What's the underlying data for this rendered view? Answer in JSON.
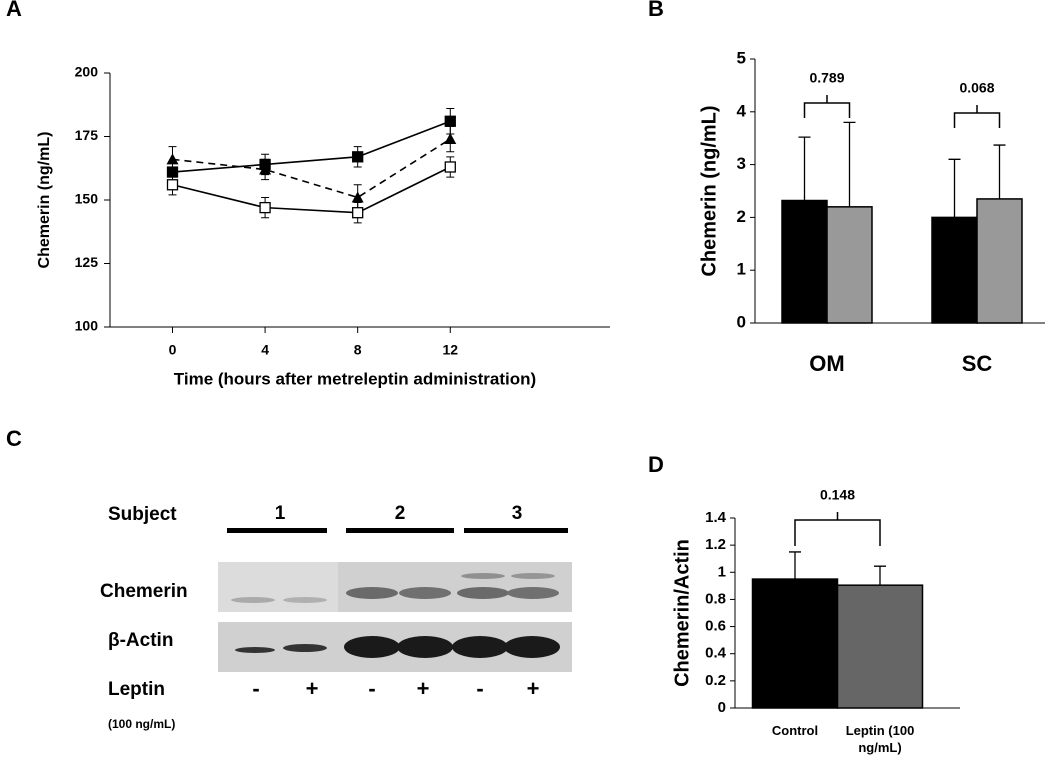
{
  "chart_data": [
    {
      "type": "line",
      "label": "A",
      "y_label": "Chemerin (ng/mL)",
      "x_label": "Time (hours after metreleptin administration)",
      "x": [
        0,
        4,
        8,
        12
      ],
      "xlim": [
        -2.7,
        18.9
      ],
      "xticks": [
        0,
        4,
        8,
        12
      ],
      "ylim": [
        100,
        200
      ],
      "yticks": [
        100,
        125,
        150,
        175,
        200
      ],
      "series": [
        {
          "color": "#000000",
          "marker": "square",
          "dash": false,
          "values": [
            161,
            164,
            167,
            181
          ],
          "errors": [
            4,
            4,
            4,
            5
          ]
        },
        {
          "color": "#000000",
          "marker": "triangle",
          "dash": true,
          "values": [
            166,
            162,
            151,
            174
          ],
          "errors": [
            5,
            4,
            5,
            5
          ]
        },
        {
          "color": "#000000",
          "marker": "square-open",
          "dash": false,
          "values": [
            156,
            147,
            145,
            163
          ],
          "errors": [
            4,
            4,
            4,
            4
          ]
        }
      ]
    },
    {
      "type": "bar",
      "label": "B",
      "y_label": "Chemerin (ng/mL)",
      "categories": [
        "OM",
        "SC"
      ],
      "ylim": [
        0,
        5
      ],
      "yticks": [
        0,
        1,
        2,
        3,
        4,
        5
      ],
      "series": [
        {
          "color": "#000000",
          "values": [
            2.32,
            2.0
          ],
          "errors": [
            1.2,
            1.1
          ]
        },
        {
          "color": "#999999",
          "values": [
            2.2,
            2.35
          ],
          "errors": [
            1.6,
            1.02
          ]
        }
      ],
      "annotations": [
        "0.789",
        "0.068"
      ]
    },
    {
      "type": "bar",
      "label": "D",
      "y_label": "Chemerin/Actin",
      "categories": [
        "Control",
        "Leptin (100 ng/mL)"
      ],
      "ylim": [
        0,
        1.4
      ],
      "yticks": [
        0,
        0.2,
        0.4,
        0.6,
        0.8,
        1,
        1.2,
        1.4
      ],
      "values": [
        0.95,
        0.905
      ],
      "errors": [
        0.2,
        0.14
      ],
      "colors": [
        "#000000",
        "#666666"
      ],
      "annotations": [
        "0.148"
      ]
    }
  ],
  "blot": {
    "label": "C",
    "subject_label": "Subject",
    "subjects": [
      "1",
      "2",
      "3"
    ],
    "rows": [
      "Chemerin",
      "β-Actin"
    ],
    "treatment_label": "Leptin",
    "treatment_note": "(100 ng/mL)",
    "lanes": [
      "-",
      "+",
      "-",
      "+",
      "-",
      "+"
    ]
  }
}
